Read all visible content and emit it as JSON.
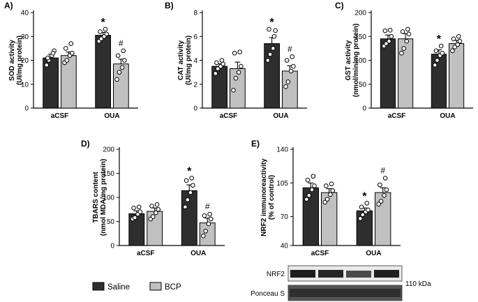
{
  "colors": {
    "saline": "#2e2e2e",
    "bcp": "#c0c0c0"
  },
  "legend": {
    "items": [
      {
        "label": "Saline",
        "color": "#2e2e2e"
      },
      {
        "label": "BCP",
        "color": "#c0c0c0"
      }
    ]
  },
  "chart_data": [
    {
      "panel": "A)",
      "type": "bar",
      "ylabel": "SOD activity\n(UI/mg protein)",
      "categories": [
        "aCSF",
        "OUA"
      ],
      "ylim": [
        0,
        40
      ],
      "yticks": [
        0,
        10,
        20,
        30,
        40
      ],
      "series": [
        {
          "name": "Saline",
          "values": [
            21,
            30.5
          ],
          "sem": [
            1.5,
            1.2
          ],
          "points": [
            [
              18,
              20,
              22,
              24,
              21,
              23
            ],
            [
              28,
              29,
              30,
              31,
              32,
              33
            ]
          ]
        },
        {
          "name": "BCP",
          "values": [
            22,
            18.5
          ],
          "sem": [
            1.5,
            2.0
          ],
          "points": [
            [
              19,
              20,
              22,
              23,
              25,
              27
            ],
            [
              12,
              15,
              17,
              20,
              22,
              24
            ]
          ]
        }
      ],
      "annotations": [
        {
          "category": "OUA",
          "series": "Saline",
          "text": "*"
        },
        {
          "category": "OUA",
          "series": "BCP",
          "text": "#"
        }
      ]
    },
    {
      "panel": "B)",
      "type": "bar",
      "ylabel": "CAT activity\n(UI/mg protein)",
      "categories": [
        "aCSF",
        "OUA"
      ],
      "ylim": [
        0,
        8
      ],
      "yticks": [
        0,
        2,
        4,
        6,
        8
      ],
      "series": [
        {
          "name": "Saline",
          "values": [
            3.5,
            5.4
          ],
          "sem": [
            0.2,
            0.5
          ],
          "points": [
            [
              2.9,
              3.3,
              3.5,
              3.7,
              3.8,
              4.0
            ],
            [
              4.0,
              4.5,
              5.0,
              6.5,
              6.6,
              6.0
            ]
          ]
        },
        {
          "name": "BCP",
          "values": [
            3.3,
            3.1
          ],
          "sem": [
            0.55,
            0.45
          ],
          "points": [
            [
              1.5,
              2.5,
              3.0,
              3.5,
              4.6,
              4.7
            ],
            [
              1.8,
              2.2,
              3.1,
              3.5,
              4.0,
              4.3
            ]
          ]
        }
      ],
      "annotations": [
        {
          "category": "OUA",
          "series": "Saline",
          "text": "*"
        },
        {
          "category": "OUA",
          "series": "BCP",
          "text": "#"
        }
      ]
    },
    {
      "panel": "C)",
      "type": "bar",
      "ylabel": "GST activity\n(nmol/min/mg protein)",
      "categories": [
        "aCSF",
        "OUA"
      ],
      "ylim": [
        0,
        200
      ],
      "yticks": [
        0,
        50,
        100,
        150,
        200
      ],
      "series": [
        {
          "name": "Saline",
          "values": [
            145,
            113
          ],
          "sem": [
            8,
            9
          ],
          "points": [
            [
              130,
              135,
              140,
              150,
              162,
              163
            ],
            [
              90,
              100,
              110,
              115,
              120,
              130
            ]
          ]
        },
        {
          "name": "BCP",
          "values": [
            145,
            135
          ],
          "sem": [
            11,
            7
          ],
          "points": [
            [
              115,
              125,
              140,
              155,
              160,
              165
            ],
            [
              120,
              128,
              133,
              140,
              145,
              150
            ]
          ]
        }
      ],
      "annotations": [
        {
          "category": "OUA",
          "series": "Saline",
          "text": "*"
        }
      ]
    },
    {
      "panel": "D)",
      "type": "bar",
      "ylabel": "TBARS content\n(nmol MDA/mg protein)",
      "categories": [
        "aCSF",
        "OUA"
      ],
      "ylim": [
        0,
        200
      ],
      "yticks": [
        0,
        50,
        100,
        150,
        200
      ],
      "series": [
        {
          "name": "Saline",
          "values": [
            66,
            114
          ],
          "sem": [
            6,
            12
          ],
          "points": [
            [
              55,
              58,
              65,
              70,
              78,
              80
            ],
            [
              80,
              95,
              110,
              125,
              135,
              140
            ]
          ]
        },
        {
          "name": "BCP",
          "values": [
            71,
            47
          ],
          "sem": [
            7,
            10
          ],
          "points": [
            [
              55,
              60,
              68,
              75,
              82,
              85
            ],
            [
              20,
              30,
              45,
              55,
              62,
              65
            ]
          ]
        }
      ],
      "annotations": [
        {
          "category": "OUA",
          "series": "Saline",
          "text": "*"
        },
        {
          "category": "OUA",
          "series": "BCP",
          "text": "#"
        }
      ]
    },
    {
      "panel": "E)",
      "type": "bar",
      "ylabel": "NRF2 immunoreactivity\n(% of control)",
      "categories": [
        "aCSF",
        "OUA"
      ],
      "ylim": [
        40,
        140
      ],
      "yticks": [
        40,
        70,
        105,
        140
      ],
      "series": [
        {
          "name": "Saline",
          "values": [
            100,
            76
          ],
          "sem": [
            5,
            3
          ],
          "points": [
            [
              88,
              92,
              98,
              102,
              108,
              112
            ],
            [
              68,
              72,
              75,
              77,
              80,
              84
            ]
          ]
        },
        {
          "name": "BCP",
          "values": [
            95,
            95
          ],
          "sem": [
            4,
            5
          ],
          "points": [
            [
              85,
              88,
              93,
              97,
              102,
              104
            ],
            [
              83,
              86,
              92,
              98,
              103,
              110
            ]
          ]
        }
      ],
      "annotations": [
        {
          "category": "OUA",
          "series": "Saline",
          "text": "*"
        },
        {
          "category": "OUA",
          "series": "BCP",
          "text": "#"
        }
      ]
    }
  ],
  "blot": {
    "rows": [
      "NRF2",
      "Ponceau S"
    ],
    "size_label": "110 kDa"
  }
}
